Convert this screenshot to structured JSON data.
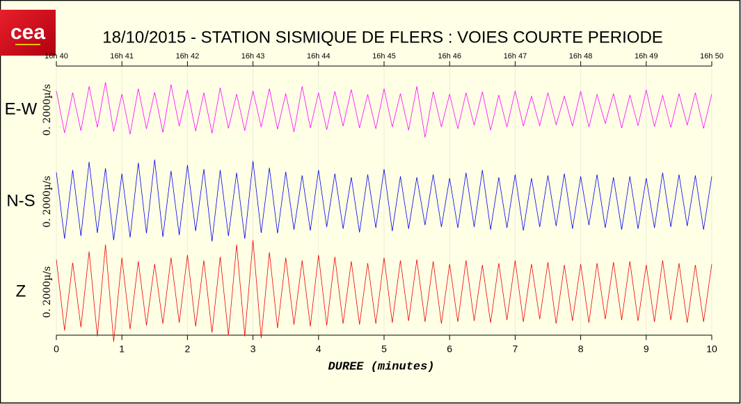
{
  "chart_data": {
    "type": "line",
    "logo": "cea",
    "title": "18/10/2015  -  STATION SISMIQUE DE FLERS : VOIES COURTE PERIODE",
    "xlabel": "DUREE (minutes)",
    "scale_label": "0. 2000µ/s",
    "xlim": [
      0,
      10
    ],
    "xticks": [
      0,
      1,
      2,
      3,
      4,
      5,
      6,
      7,
      8,
      9,
      10
    ],
    "x2ticks": [
      {
        "value": 0,
        "label": "16h 40"
      },
      {
        "value": 1,
        "label": "16h 41"
      },
      {
        "value": 2,
        "label": "16h 42"
      },
      {
        "value": 3,
        "label": "16h 43"
      },
      {
        "value": 4,
        "label": "16h 44"
      },
      {
        "value": 5,
        "label": "16h 45"
      },
      {
        "value": 6,
        "label": "16h 46"
      },
      {
        "value": 7,
        "label": "16h 47"
      },
      {
        "value": 8,
        "label": "16h 48"
      },
      {
        "value": 9,
        "label": "16h 49"
      },
      {
        "value": 10,
        "label": "16h 50"
      }
    ],
    "grid": true,
    "x": [
      0,
      0.125,
      0.25,
      0.375,
      0.5,
      0.625,
      0.75,
      0.875,
      1,
      1.125,
      1.25,
      1.375,
      1.5,
      1.625,
      1.75,
      1.875,
      2,
      2.125,
      2.25,
      2.375,
      2.5,
      2.625,
      2.75,
      2.875,
      3,
      3.125,
      3.25,
      3.375,
      3.5,
      3.625,
      3.75,
      3.875,
      4,
      4.125,
      4.25,
      4.375,
      4.5,
      4.625,
      4.75,
      4.875,
      5,
      5.125,
      5.25,
      5.375,
      5.5,
      5.625,
      5.75,
      5.875,
      6,
      6.125,
      6.25,
      6.375,
      6.5,
      6.625,
      6.75,
      6.875,
      7,
      7.125,
      7.25,
      7.375,
      7.5,
      7.625,
      7.75,
      7.875,
      8,
      8.125,
      8.25,
      8.375,
      8.5,
      8.625,
      8.75,
      8.875,
      9,
      9.125,
      9.25,
      9.375,
      9.5,
      9.625,
      9.75,
      9.875,
      10
    ],
    "series": [
      {
        "name": "E-W",
        "color": "#ff00ff",
        "ylim": [
          -1000,
          1000
        ],
        "values": [
          420,
          -510,
          380,
          -460,
          520,
          -390,
          610,
          -480,
          350,
          -540,
          470,
          -420,
          390,
          -500,
          560,
          -360,
          440,
          -470,
          380,
          -520,
          490,
          -410,
          350,
          -460,
          420,
          -380,
          470,
          -430,
          360,
          -490,
          520,
          -400,
          380,
          -440,
          410,
          -360,
          450,
          -400,
          340,
          -420,
          470,
          -380,
          360,
          -450,
          520,
          -610,
          400,
          -380,
          350,
          -420,
          380,
          -340,
          400,
          -450,
          330,
          -380,
          420,
          -360,
          300,
          -350,
          380,
          -330,
          300,
          -360,
          410,
          -380,
          340,
          -300,
          360,
          -400,
          330,
          -350,
          440,
          -370,
          320,
          -390,
          360,
          -340,
          380,
          -410,
          350
        ]
      },
      {
        "name": "N-S",
        "color": "#0000ee",
        "ylim": [
          -1000,
          1000
        ],
        "values": [
          650,
          -820,
          700,
          -760,
          880,
          -690,
          740,
          -850,
          620,
          -790,
          860,
          -700,
          930,
          -780,
          680,
          -740,
          810,
          -650,
          720,
          -880,
          700,
          -760,
          640,
          -820,
          900,
          -690,
          750,
          -700,
          660,
          -620,
          580,
          -640,
          700,
          -560,
          620,
          -600,
          540,
          -680,
          600,
          -580,
          720,
          -650,
          560,
          -600,
          540,
          -520,
          600,
          -560,
          520,
          -580,
          640,
          -560,
          700,
          -620,
          540,
          -580,
          600,
          -640,
          520,
          -560,
          580,
          -540,
          620,
          -600,
          560,
          -520,
          600,
          -580,
          540,
          -620,
          560,
          -600,
          520,
          -580,
          640,
          -560,
          600,
          -540,
          580,
          -620,
          560
        ]
      },
      {
        "name": "Z",
        "color": "#ee0000",
        "ylim": [
          -1000,
          1000
        ],
        "values": [
          720,
          -850,
          650,
          -780,
          900,
          -980,
          1050,
          -1100,
          760,
          -820,
          680,
          -740,
          620,
          -700,
          760,
          -680,
          820,
          -760,
          700,
          -900,
          780,
          -960,
          1050,
          -980,
          1150,
          -1020,
          880,
          -800,
          760,
          -720,
          700,
          -760,
          820,
          -740,
          780,
          -700,
          680,
          -720,
          640,
          -700,
          760,
          -680,
          700,
          -640,
          720,
          -660,
          680,
          -700,
          620,
          -660,
          700,
          -640,
          600,
          -680,
          640,
          -620,
          700,
          -660,
          620,
          -600,
          660,
          -700,
          600,
          -640,
          620,
          -680,
          640,
          -600,
          660,
          -620,
          680,
          -640,
          600,
          -660,
          700,
          -620,
          640,
          -680,
          600,
          -660,
          620
        ]
      }
    ]
  }
}
